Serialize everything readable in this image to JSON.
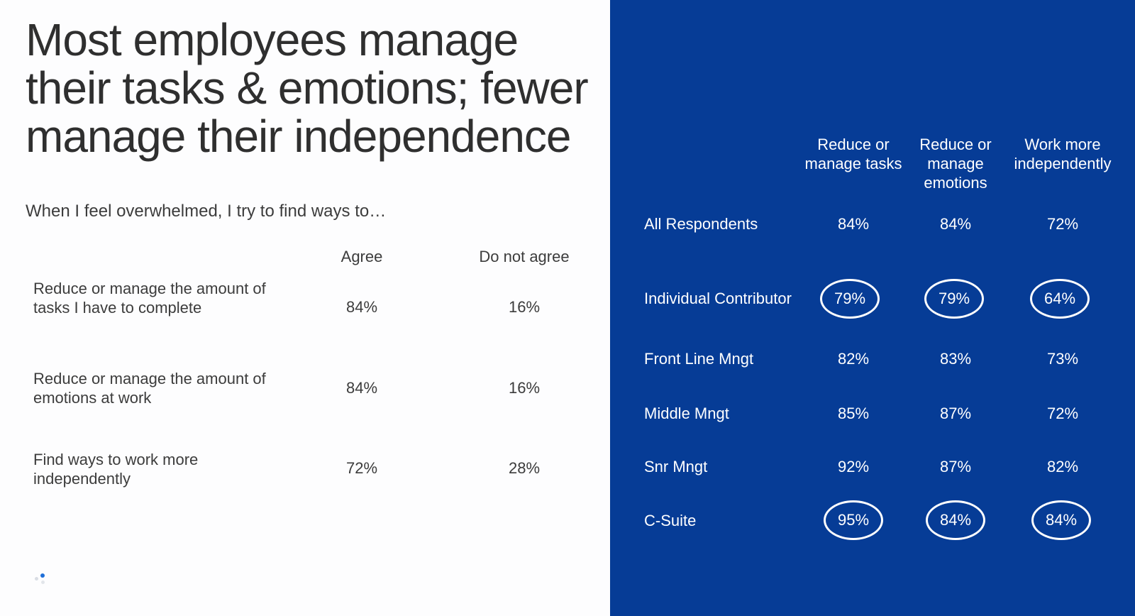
{
  "title": "Most employees manage their tasks & emotions; fewer manage their independence",
  "subtitle": "When I feel overwhelmed, I try to find ways to…",
  "left_table": {
    "headers": [
      "Agree",
      "Do not agree"
    ],
    "rows": [
      {
        "label": "Reduce or manage the amount of tasks I have to complete",
        "agree": "84%",
        "not_agree": "16%"
      },
      {
        "label": "Reduce or manage the amount of emotions at work",
        "agree": "84%",
        "not_agree": "16%"
      },
      {
        "label": "Find ways to work more independently",
        "agree": "72%",
        "not_agree": "28%"
      }
    ]
  },
  "right_table": {
    "headers": [
      "Reduce or manage tasks",
      "Reduce or manage emotions",
      "Work more independently"
    ],
    "rows": [
      {
        "label": "All Respondents",
        "values": [
          "84%",
          "84%",
          "72%"
        ],
        "circled": false
      },
      {
        "label": "Individual Contributor",
        "values": [
          "79%",
          "79%",
          "64%"
        ],
        "circled": true
      },
      {
        "label": "Front Line Mngt",
        "values": [
          "82%",
          "83%",
          "73%"
        ],
        "circled": false
      },
      {
        "label": "Middle Mngt",
        "values": [
          "85%",
          "87%",
          "72%"
        ],
        "circled": false
      },
      {
        "label": "Snr Mngt",
        "values": [
          "92%",
          "87%",
          "82%"
        ],
        "circled": false
      },
      {
        "label": "C-Suite",
        "values": [
          "95%",
          "84%",
          "84%"
        ],
        "circled": true
      }
    ]
  },
  "colors": {
    "panel_blue": "#063c96",
    "text_dark": "#3a3a3a",
    "text_light": "#ffffff"
  }
}
